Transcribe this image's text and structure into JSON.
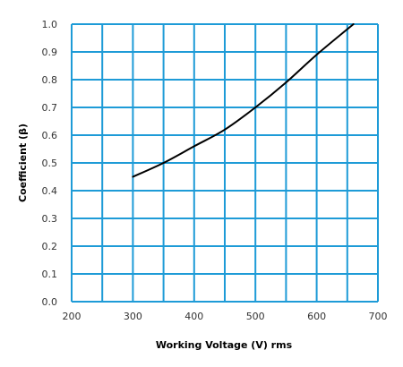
{
  "chart_data": {
    "type": "line",
    "title": "",
    "xlabel": "Working Voltage (V) rms",
    "ylabel": "Coefficient (β)",
    "xlim": [
      200,
      700
    ],
    "ylim": [
      0.0,
      1.0
    ],
    "x_ticks": [
      200,
      300,
      400,
      500,
      600,
      700
    ],
    "y_ticks": [
      0.0,
      0.1,
      0.2,
      0.3,
      0.4,
      0.5,
      0.6,
      0.7,
      0.8,
      0.9,
      1.0
    ],
    "x_tick_labels": [
      "200",
      "300",
      "400",
      "500",
      "600",
      "700"
    ],
    "y_tick_labels": [
      "0.0",
      "0.1",
      "0.2",
      "0.3",
      "0.4",
      "0.5",
      "0.6",
      "0.7",
      "0.8",
      "0.9",
      "1.0"
    ],
    "grid": true,
    "grid_minor_x_step": 50,
    "colors": {
      "grid": "#1e9bd7",
      "line": "#000000",
      "background": "#ffffff"
    },
    "series": [
      {
        "x": [
          300,
          350,
          400,
          450,
          500,
          550,
          600,
          660
        ],
        "y": [
          0.45,
          0.5,
          0.56,
          0.62,
          0.7,
          0.79,
          0.89,
          1.0
        ]
      }
    ]
  }
}
